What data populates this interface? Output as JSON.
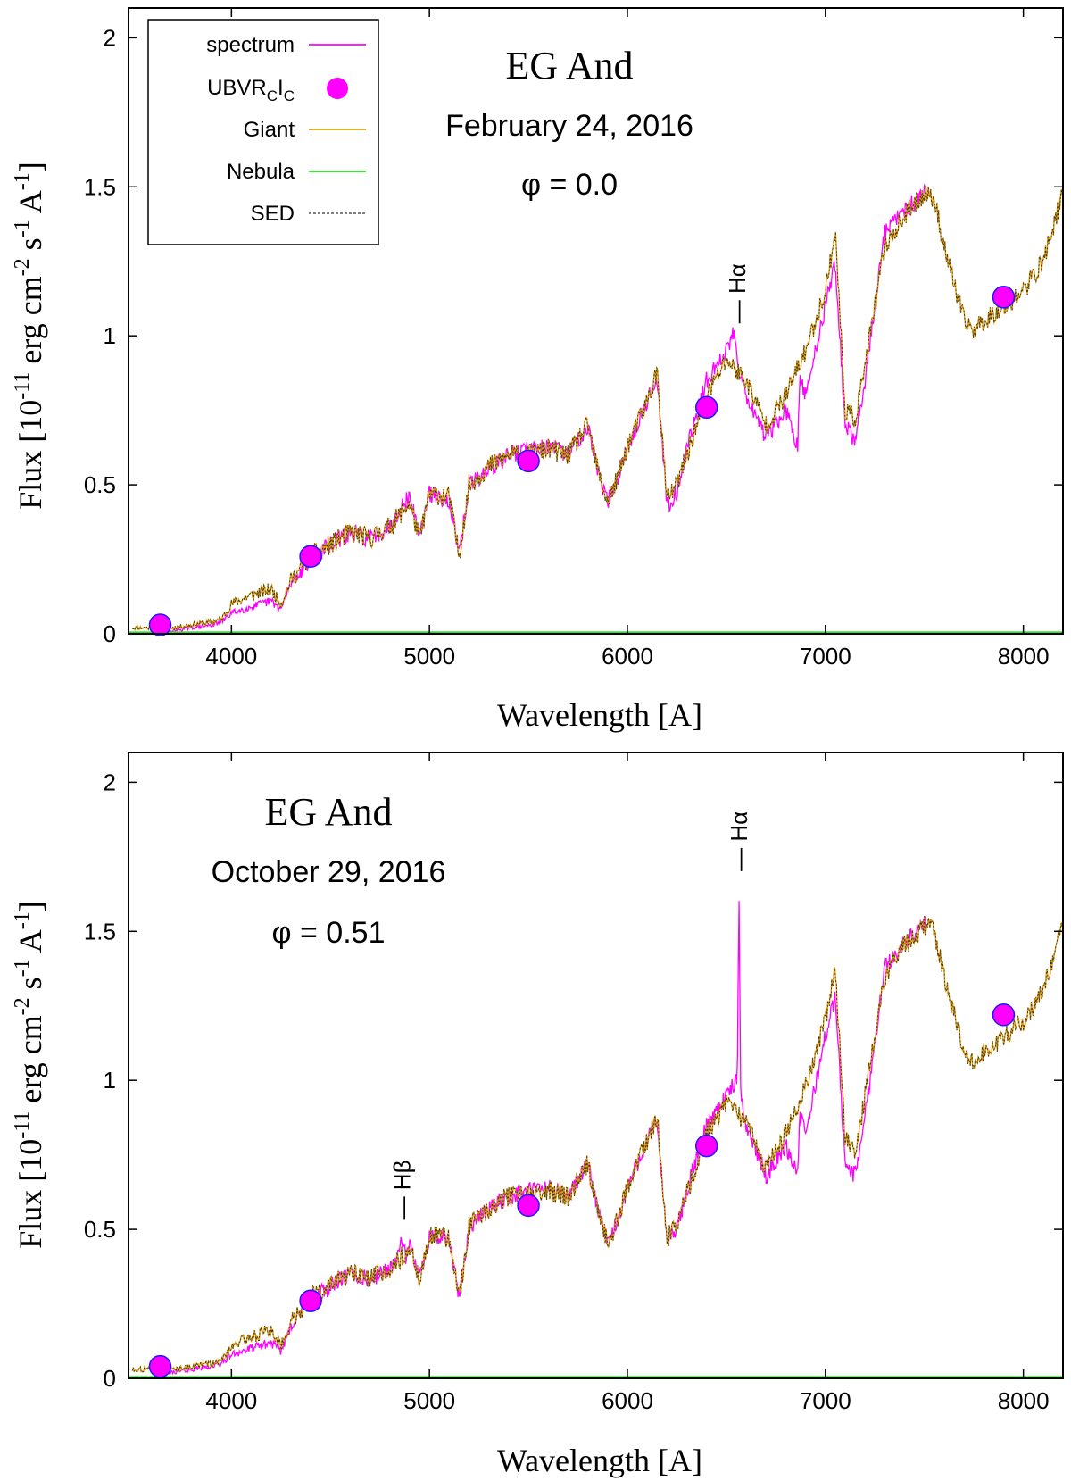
{
  "chart_data": [
    {
      "type": "line",
      "title": "EG And",
      "annotations": {
        "name": "EG And",
        "date": "February 24, 2016",
        "phase": "φ = 0.0"
      },
      "xlabel": "Wavelength [A]",
      "ylabel": "Flux [10-11 erg cm-2 s-1 A-1]",
      "xlim": [
        3480,
        8200
      ],
      "ylim": [
        0,
        2.1
      ],
      "xticks": [
        4000,
        5000,
        6000,
        7000,
        8000
      ],
      "yticks": [
        0,
        0.5,
        1,
        1.5,
        2
      ],
      "ytick_labels": [
        "0",
        "0.5",
        "1",
        "1.5",
        "2"
      ],
      "legend": [
        "spectrum",
        "UBVRCIC",
        "Giant",
        "Nebula",
        "SED"
      ],
      "legend_position": "top-left",
      "colors": {
        "spectrum": "#ff00ff",
        "photometry_fill": "#ff00ff",
        "photometry_edge": "#1a1aff",
        "giant": "#e8a000",
        "nebula": "#20dd20",
        "sed": "#333333"
      },
      "photometry": [
        {
          "band": "U",
          "x": 3640,
          "y": 0.03
        },
        {
          "band": "B",
          "x": 4400,
          "y": 0.26
        },
        {
          "band": "V",
          "x": 5500,
          "y": 0.58
        },
        {
          "band": "RC",
          "x": 6400,
          "y": 0.76
        },
        {
          "band": "IC",
          "x": 7900,
          "y": 1.13
        }
      ],
      "sed_anchor": {
        "x": [
          3600,
          3700,
          3800,
          3900,
          3950,
          4000,
          4100,
          4200,
          4250,
          4300,
          4400,
          4500,
          4600,
          4700,
          4800,
          4850,
          4900,
          4950,
          5000,
          5100,
          5150,
          5200,
          5300,
          5400,
          5500,
          5600,
          5700,
          5800,
          5850,
          5900,
          5950,
          6000,
          6100,
          6150,
          6200,
          6250,
          6300,
          6400,
          6500,
          6600,
          6700,
          6800,
          6900,
          7000,
          7050,
          7100,
          7150,
          7200,
          7300,
          7400,
          7500,
          7550,
          7600,
          7700,
          7750,
          7800,
          7900,
          8000,
          8100,
          8200
        ],
        "y": [
          0.02,
          0.02,
          0.03,
          0.04,
          0.05,
          0.1,
          0.13,
          0.15,
          0.1,
          0.18,
          0.26,
          0.3,
          0.34,
          0.32,
          0.36,
          0.4,
          0.44,
          0.32,
          0.47,
          0.46,
          0.26,
          0.5,
          0.56,
          0.6,
          0.6,
          0.62,
          0.6,
          0.7,
          0.55,
          0.44,
          0.52,
          0.63,
          0.78,
          0.88,
          0.45,
          0.5,
          0.6,
          0.8,
          0.92,
          0.85,
          0.7,
          0.8,
          0.95,
          1.15,
          1.35,
          0.75,
          0.72,
          0.9,
          1.3,
          1.4,
          1.48,
          1.46,
          1.3,
          1.05,
          1.02,
          1.05,
          1.1,
          1.15,
          1.25,
          1.48
        ]
      },
      "spectrum_anchor": {
        "x": [
          3600,
          3700,
          3800,
          3900,
          3950,
          4000,
          4100,
          4200,
          4250,
          4300,
          4400,
          4500,
          4600,
          4700,
          4800,
          4850,
          4900,
          4950,
          5000,
          5100,
          5150,
          5200,
          5300,
          5400,
          5500,
          5600,
          5700,
          5800,
          5850,
          5900,
          5950,
          6000,
          6100,
          6150,
          6200,
          6250,
          6300,
          6400,
          6500,
          6540,
          6560,
          6600,
          6700,
          6800,
          6860,
          6870,
          6900,
          7000,
          7050,
          7100,
          7150,
          7200,
          7300,
          7400,
          7500
        ],
        "y": [
          0.01,
          0.01,
          0.02,
          0.03,
          0.04,
          0.07,
          0.09,
          0.11,
          0.08,
          0.17,
          0.25,
          0.3,
          0.34,
          0.32,
          0.36,
          0.42,
          0.46,
          0.33,
          0.47,
          0.45,
          0.26,
          0.5,
          0.55,
          0.6,
          0.62,
          0.63,
          0.6,
          0.7,
          0.55,
          0.44,
          0.52,
          0.63,
          0.78,
          0.86,
          0.43,
          0.48,
          0.62,
          0.85,
          0.95,
          1.02,
          0.9,
          0.8,
          0.66,
          0.75,
          0.62,
          0.85,
          0.8,
          1.1,
          1.25,
          0.7,
          0.65,
          0.85,
          1.35,
          1.42,
          1.48
        ]
      },
      "line_labels": [
        {
          "text": "Hα",
          "x": 6555,
          "y": 1.0
        }
      ]
    },
    {
      "type": "line",
      "title": "EG And",
      "annotations": {
        "name": "EG And",
        "date": "October 29, 2016",
        "phase": "φ = 0.51"
      },
      "xlabel": "Wavelength [A]",
      "ylabel": "Flux [10-11 erg cm-2 s-1 A-1]",
      "xlim": [
        3480,
        8200
      ],
      "ylim": [
        0,
        2.1
      ],
      "xticks": [
        4000,
        5000,
        6000,
        7000,
        8000
      ],
      "yticks": [
        0,
        0.5,
        1,
        1.5,
        2
      ],
      "ytick_labels": [
        "0",
        "0.5",
        "1",
        "1.5",
        "2"
      ],
      "colors": {
        "spectrum": "#ff00ff",
        "photometry_fill": "#ff00ff",
        "photometry_edge": "#1a1aff",
        "giant": "#e8a000",
        "nebula": "#20dd20",
        "sed": "#333333"
      },
      "photometry": [
        {
          "band": "U",
          "x": 3640,
          "y": 0.04
        },
        {
          "band": "B",
          "x": 4400,
          "y": 0.26
        },
        {
          "band": "V",
          "x": 5500,
          "y": 0.58
        },
        {
          "band": "RC",
          "x": 6400,
          "y": 0.78
        },
        {
          "band": "IC",
          "x": 7900,
          "y": 1.22
        }
      ],
      "sed_anchor": {
        "x": [
          3600,
          3700,
          3800,
          3900,
          3950,
          4000,
          4100,
          4200,
          4250,
          4300,
          4400,
          4500,
          4600,
          4700,
          4800,
          4850,
          4900,
          4950,
          5000,
          5100,
          5150,
          5200,
          5300,
          5400,
          5500,
          5600,
          5700,
          5800,
          5850,
          5900,
          5950,
          6000,
          6100,
          6150,
          6200,
          6250,
          6300,
          6400,
          6500,
          6600,
          6700,
          6800,
          6900,
          7000,
          7050,
          7100,
          7150,
          7200,
          7300,
          7400,
          7500,
          7550,
          7600,
          7700,
          7750,
          7800,
          7900,
          8000,
          8100,
          8200
        ],
        "y": [
          0.03,
          0.03,
          0.04,
          0.05,
          0.06,
          0.11,
          0.14,
          0.16,
          0.11,
          0.19,
          0.27,
          0.31,
          0.35,
          0.33,
          0.37,
          0.4,
          0.44,
          0.33,
          0.48,
          0.47,
          0.27,
          0.51,
          0.57,
          0.61,
          0.61,
          0.63,
          0.61,
          0.72,
          0.57,
          0.45,
          0.53,
          0.64,
          0.8,
          0.88,
          0.47,
          0.52,
          0.62,
          0.82,
          0.92,
          0.86,
          0.7,
          0.82,
          0.98,
          1.2,
          1.38,
          0.8,
          0.75,
          0.95,
          1.35,
          1.45,
          1.52,
          1.5,
          1.35,
          1.1,
          1.05,
          1.1,
          1.14,
          1.2,
          1.3,
          1.52
        ]
      },
      "spectrum_anchor": {
        "x": [
          3600,
          3700,
          3800,
          3900,
          3950,
          4000,
          4100,
          4200,
          4250,
          4300,
          4400,
          4500,
          4600,
          4700,
          4800,
          4840,
          4861,
          4880,
          4900,
          4950,
          5000,
          5100,
          5150,
          5200,
          5300,
          5400,
          5500,
          5600,
          5700,
          5800,
          5850,
          5900,
          5950,
          6000,
          6100,
          6150,
          6200,
          6250,
          6300,
          6400,
          6500,
          6555,
          6563,
          6572,
          6600,
          6700,
          6800,
          6860,
          6870,
          6900,
          7000,
          7050,
          7100,
          7150,
          7200,
          7300,
          7400,
          7500
        ],
        "y": [
          0.02,
          0.02,
          0.03,
          0.04,
          0.05,
          0.08,
          0.1,
          0.12,
          0.09,
          0.18,
          0.26,
          0.31,
          0.35,
          0.33,
          0.37,
          0.4,
          0.48,
          0.4,
          0.44,
          0.34,
          0.48,
          0.46,
          0.27,
          0.51,
          0.57,
          0.61,
          0.63,
          0.64,
          0.61,
          0.72,
          0.57,
          0.45,
          0.53,
          0.64,
          0.8,
          0.86,
          0.46,
          0.5,
          0.63,
          0.85,
          0.95,
          1.0,
          1.65,
          0.95,
          0.85,
          0.68,
          0.78,
          0.69,
          0.88,
          0.82,
          1.15,
          1.28,
          0.72,
          0.68,
          0.88,
          1.38,
          1.46,
          1.52
        ]
      },
      "line_labels": [
        {
          "text": "Hα",
          "x": 6563,
          "y": 1.66
        },
        {
          "text": "Hβ",
          "x": 4861,
          "y": 0.49
        }
      ]
    }
  ]
}
